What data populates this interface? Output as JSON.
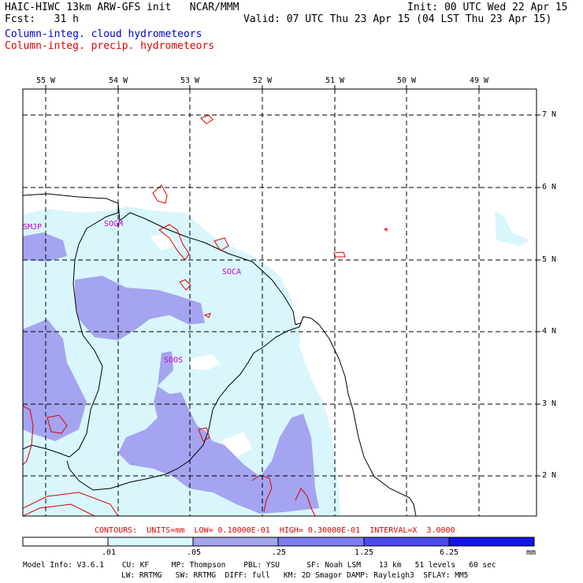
{
  "header": {
    "model_title": "HAIC-HIWC 13km ARW-GFS init   NCAR/MMM",
    "init": "Init: 00 UTC Wed 22 Apr 15",
    "fcst": "Fcst:   31 h",
    "valid": "Valid: 07 UTC Thu 23 Apr 15 (04 LST Thu 23 Apr 15)",
    "field1": "Column-integ. cloud hydrometeors",
    "field2": "Column-integ. precip. hydrometeors"
  },
  "colors": {
    "field1": "#0000cc",
    "field2": "#dd0000",
    "station": "#cc00cc",
    "shade_light": "#d8f6fc",
    "shade_medium": "#a4a4f0",
    "shade_dark": "#7d7dee",
    "shade_5": "#4a4aee",
    "shade_6": "#1414e6"
  },
  "lon_labels": [
    "55 W",
    "54 W",
    "53 W",
    "52 W",
    "51 W",
    "50 W",
    "49 W"
  ],
  "lat_labels": [
    "7 N",
    "6 N",
    "5 N",
    "4 N",
    "3 N",
    "2 N"
  ],
  "stations": [
    "SMJP",
    "SOGM",
    "SOCA",
    "SOOS"
  ],
  "contours_line": "CONTOURS:  UNITS=mm  LOW= 0.10000E-01  HIGH= 0.30000E-01  INTERVAL=X  3.0000",
  "colorbar": {
    "labels": [
      ".01",
      ".05",
      ".25",
      "1.25",
      "6.25"
    ],
    "units": "mm"
  },
  "footer": {
    "line1": "Model Info: V3.6.1    CU: KF     MP: Thompson    PBL: YSU      SF: Noah LSM    13 km   51 levels   60 sec",
    "line2": "LW: RRTMG   SW: RRTMG  DIFF: full   KM: 2D Smagor DAMP: Rayleigh3  SFLAY: MM5"
  }
}
